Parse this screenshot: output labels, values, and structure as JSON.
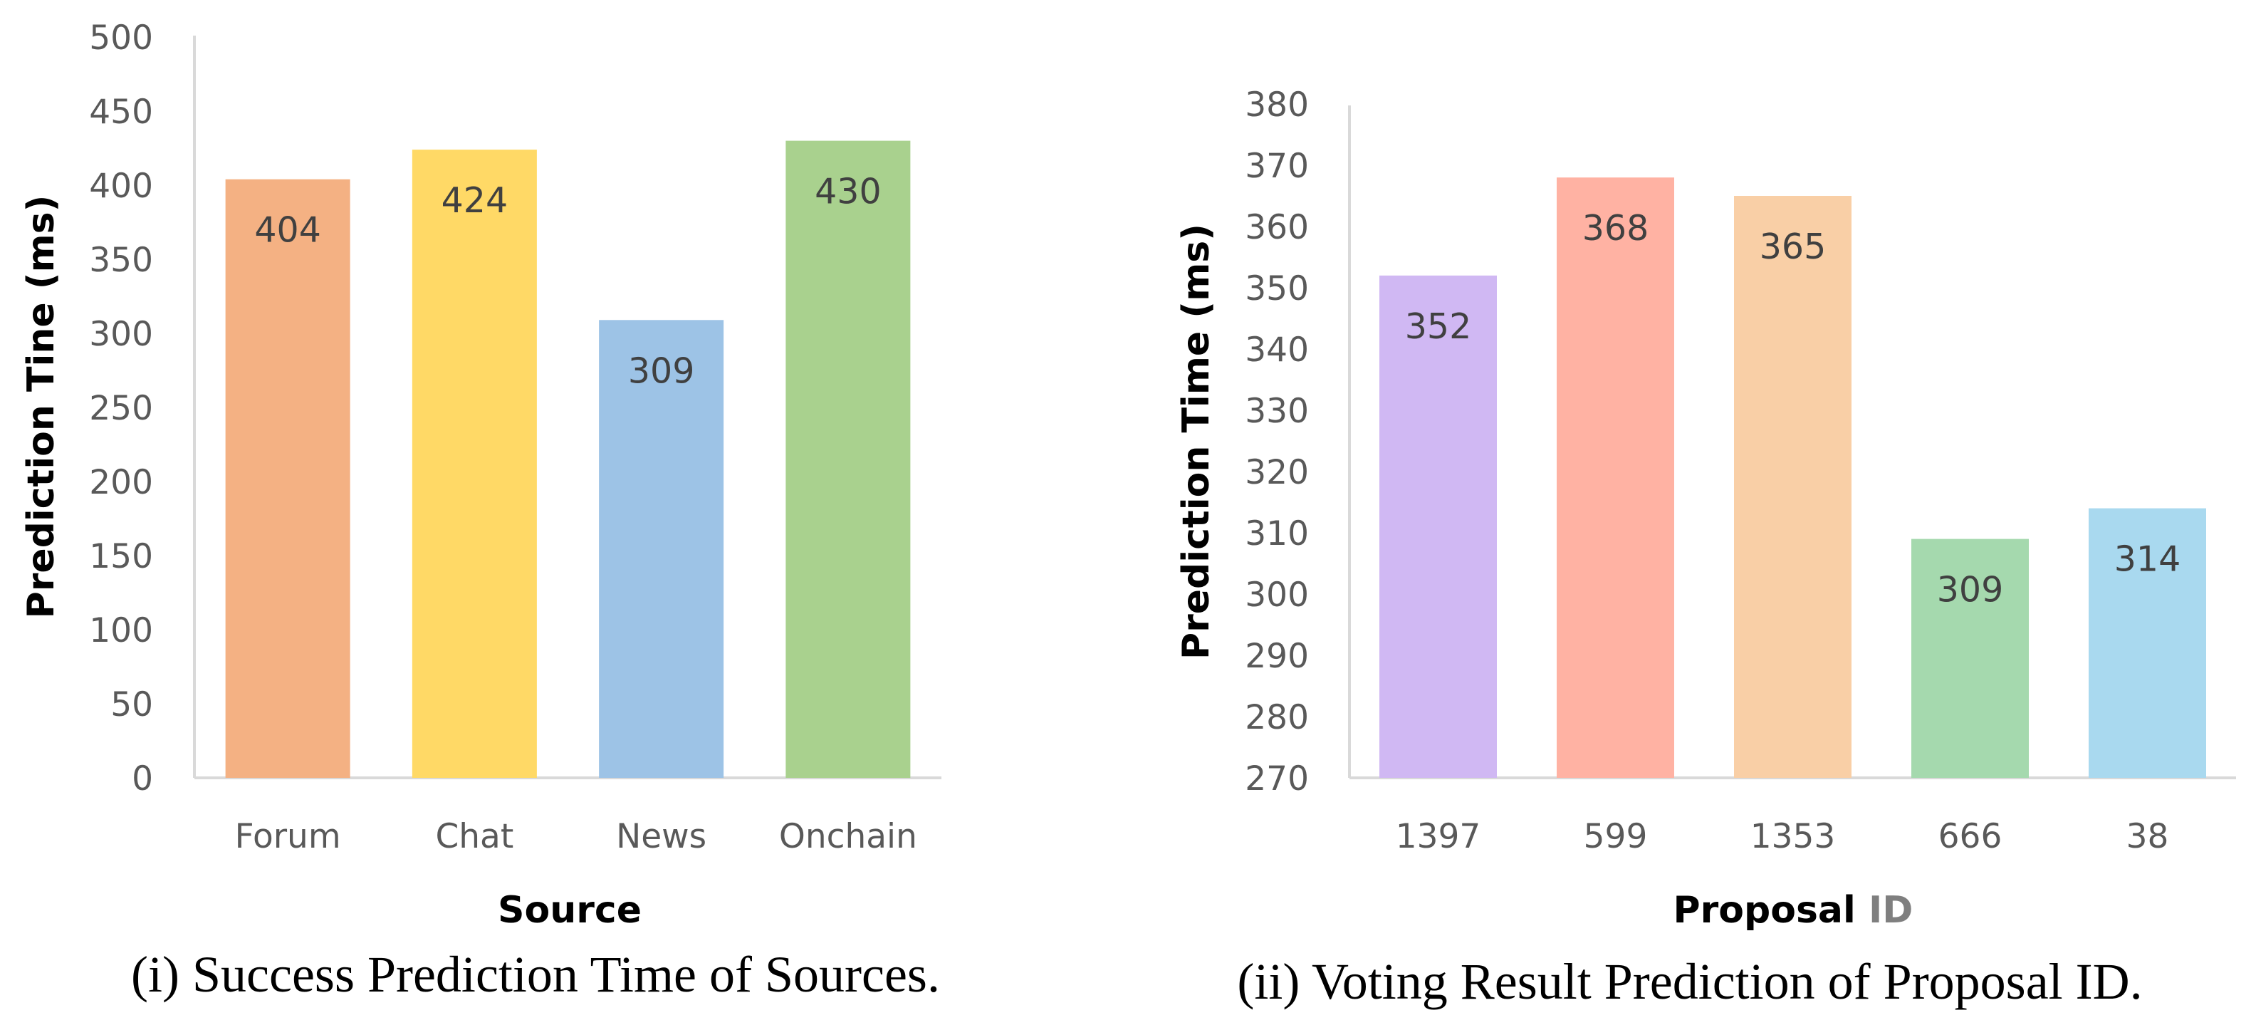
{
  "chart_data": [
    {
      "type": "bar",
      "id": "left",
      "categories": [
        "Forum",
        "Chat",
        "News",
        "Onchain"
      ],
      "values": [
        404,
        424,
        309,
        430
      ],
      "data_labels": [
        "404",
        "424",
        "309",
        "430"
      ],
      "colors": [
        "#f4b183",
        "#ffd966",
        "#9dc3e6",
        "#a9d18e"
      ],
      "xlabel": "Source",
      "ylabel": "Prediction Tine (ms)",
      "ylim": [
        0,
        500
      ],
      "yticks": [
        0,
        50,
        100,
        150,
        200,
        250,
        300,
        350,
        400,
        450,
        500
      ],
      "ytick_labels": [
        "0",
        "50",
        "100",
        "150",
        "200",
        "250",
        "300",
        "350",
        "400",
        "450",
        "500"
      ],
      "grid": false,
      "legend": "none",
      "caption": "(i) Success Prediction Time of Sources."
    },
    {
      "type": "bar",
      "id": "right",
      "categories": [
        "1397",
        "599",
        "1353",
        "666",
        "38"
      ],
      "values": [
        352,
        368,
        365,
        309,
        314
      ],
      "data_labels": [
        "352",
        "368",
        "365",
        "309",
        "314"
      ],
      "colors": [
        "#d0b8f3",
        "#ffb2a3",
        "#f9cfa6",
        "#a5d9ae",
        "#a9d9ef"
      ],
      "xlabel_main": "Proposal ",
      "xlabel_accent": "ID",
      "ylabel": "Prediction Time (ms)",
      "ylim": [
        270,
        380
      ],
      "yticks": [
        270,
        280,
        290,
        300,
        310,
        320,
        330,
        340,
        350,
        360,
        370,
        380
      ],
      "ytick_labels": [
        "270",
        "280",
        "290",
        "300",
        "310",
        "320",
        "330",
        "340",
        "350",
        "360",
        "370",
        "380"
      ],
      "grid": false,
      "legend": "none",
      "caption": "(ii) Voting Result Prediction of Proposal ID."
    }
  ]
}
